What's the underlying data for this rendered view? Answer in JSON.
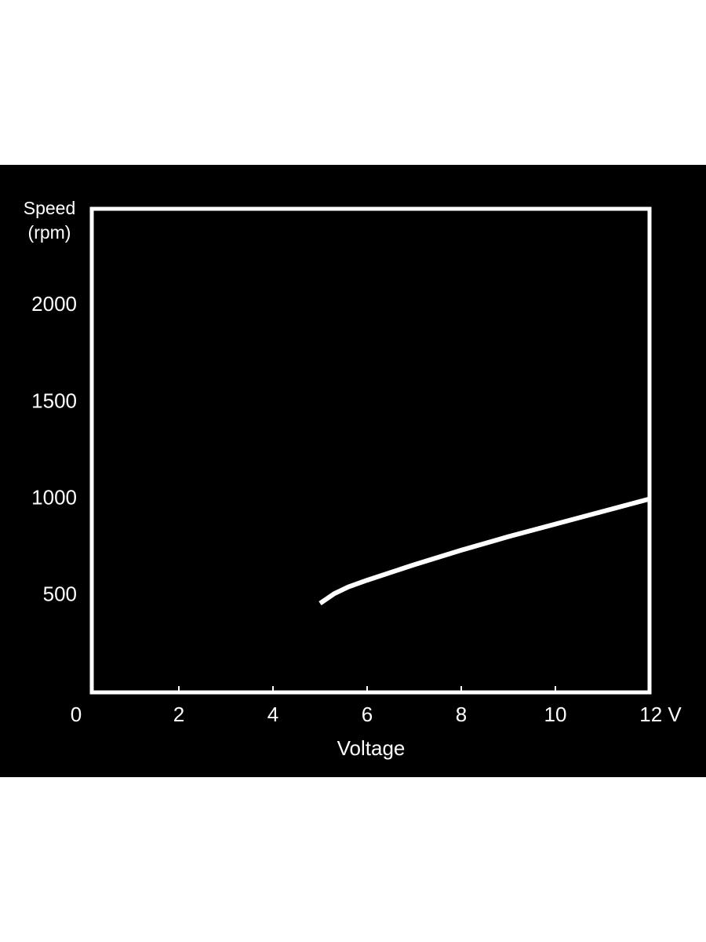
{
  "chart_data": {
    "type": "line",
    "y_label": "Speed (rpm)",
    "x_label": "Voltage",
    "x": [
      5.0,
      5.3,
      5.6,
      6,
      7,
      8,
      9,
      10,
      11,
      12
    ],
    "series": [
      {
        "color": "#ffffff",
        "values": [
          460,
          510,
          545,
          580,
          660,
          735,
          805,
          870,
          935,
          1000
        ]
      }
    ],
    "xlim": [
      0,
      12
    ],
    "xticks": [
      0,
      2,
      4,
      6,
      8,
      10,
      {
        "value": 12,
        "label": "12 V"
      }
    ],
    "ylim": [
      0,
      2500
    ],
    "yticks": [
      500,
      1000,
      1500,
      2000
    ],
    "grid": true
  }
}
